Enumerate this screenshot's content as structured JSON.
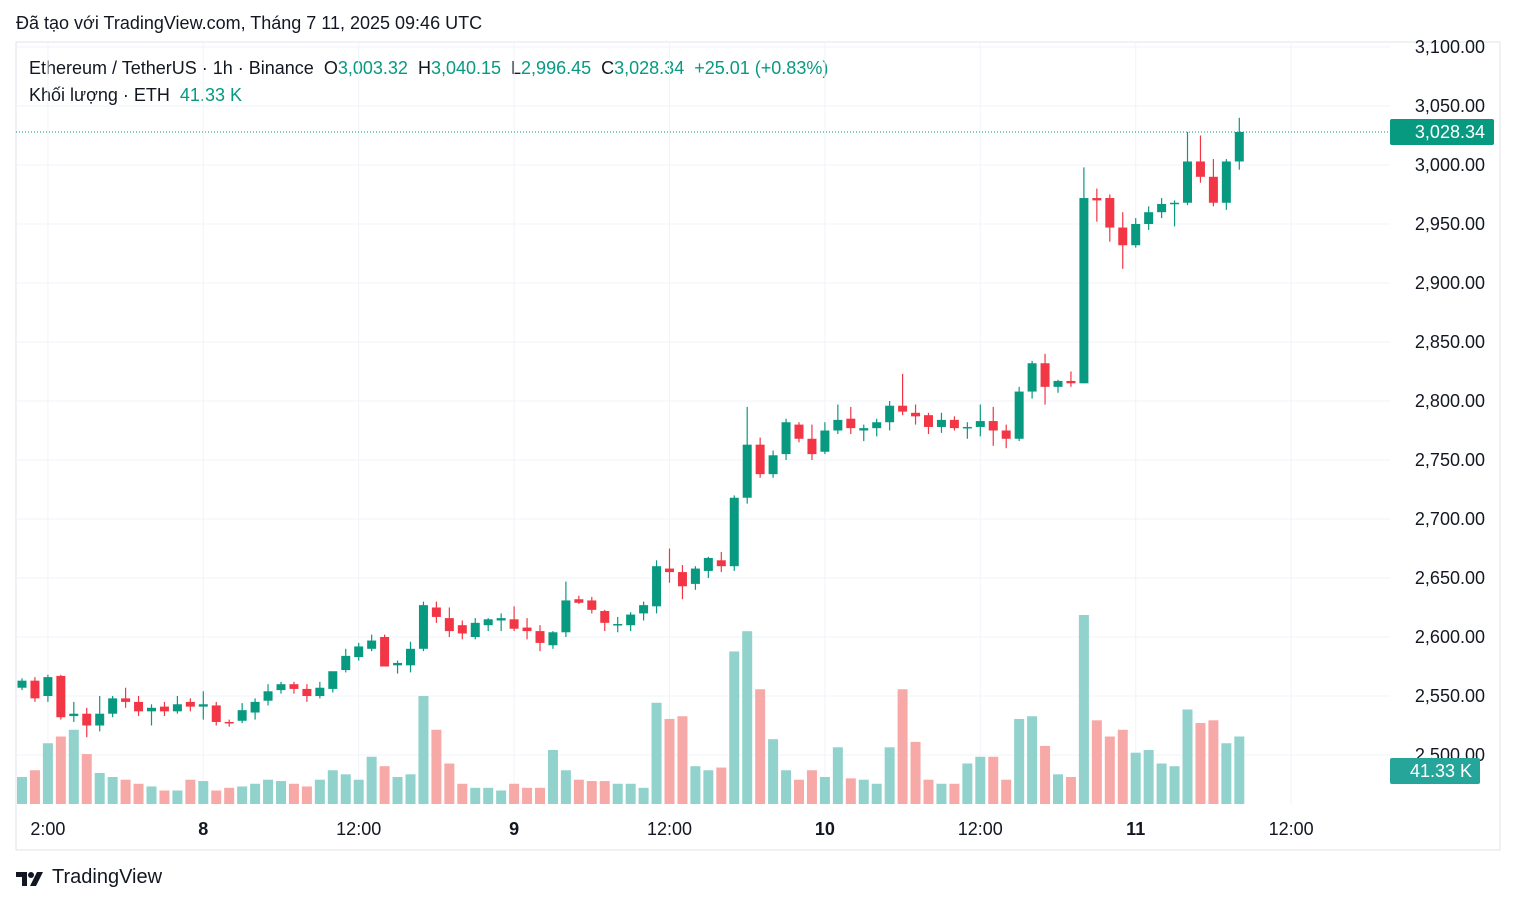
{
  "header": {
    "topline": "Đã tạo với TradingView.com, Tháng 7 11, 2025 09:46 UTC",
    "symbol": "Ethereum / TetherUS · 1h · Binance",
    "o_label": "O",
    "o_value": "3,003.32",
    "h_label": "H",
    "h_value": "3,040.15",
    "l_label": "L",
    "l_value": "2,996.45",
    "c_label": "C",
    "c_value": "3,028.34",
    "change": "+25.01 (+0.83%)",
    "volume_label": "Khối lượng · ETH",
    "volume_value": "41.33 K"
  },
  "footer": {
    "brand": "TradingView"
  },
  "colors": {
    "up": "#089981",
    "down": "#f23645",
    "vol_up": "#92d2cc",
    "vol_down": "#f7a9a7",
    "grid": "#f0f3fa"
  },
  "chart_data": {
    "type": "candlestick",
    "title": "Ethereum / TetherUS · 1h · Binance",
    "last_price_label": "3,028.34",
    "last_volume_label": "41.33 K",
    "ylim": [
      2460,
      3110
    ],
    "y_ticks": [
      "3,100.00",
      "3,050.00",
      "3,000.00",
      "2,950.00",
      "2,900.00",
      "2,850.00",
      "2,800.00",
      "2,750.00",
      "2,700.00",
      "2,650.00",
      "2,600.00",
      "2,550.00",
      "2,500.00"
    ],
    "y_tick_values": [
      3100,
      3050,
      3000,
      2950,
      2900,
      2850,
      2800,
      2750,
      2700,
      2650,
      2600,
      2550,
      2500
    ],
    "x_ticks": [
      {
        "label": "2:00",
        "bold": false,
        "index": 2
      },
      {
        "label": "8",
        "bold": true,
        "index": 14
      },
      {
        "label": "12:00",
        "bold": false,
        "index": 26
      },
      {
        "label": "9",
        "bold": true,
        "index": 38
      },
      {
        "label": "12:00",
        "bold": false,
        "index": 50
      },
      {
        "label": "10",
        "bold": true,
        "index": 62
      },
      {
        "label": "12:00",
        "bold": false,
        "index": 74
      },
      {
        "label": "11",
        "bold": true,
        "index": 86
      },
      {
        "label": "12:00",
        "bold": false,
        "index": 98
      }
    ],
    "candles": [
      [
        2557,
        2565,
        2555,
        2563,
        20
      ],
      [
        2563,
        2566,
        2545,
        2548,
        25
      ],
      [
        2550,
        2568,
        2545,
        2566,
        45
      ],
      [
        2567,
        2568,
        2530,
        2532,
        50
      ],
      [
        2533,
        2545,
        2528,
        2535,
        55
      ],
      [
        2535,
        2540,
        2515,
        2525,
        37
      ],
      [
        2525,
        2550,
        2520,
        2535,
        23
      ],
      [
        2535,
        2550,
        2532,
        2548,
        20
      ],
      [
        2548,
        2557,
        2540,
        2545,
        18
      ],
      [
        2545,
        2550,
        2533,
        2537,
        15
      ],
      [
        2537,
        2543,
        2525,
        2540,
        13
      ],
      [
        2541,
        2545,
        2533,
        2537,
        10
      ],
      [
        2537,
        2550,
        2535,
        2543,
        10
      ],
      [
        2545,
        2548,
        2537,
        2541,
        18
      ],
      [
        2541,
        2554,
        2530,
        2543,
        17
      ],
      [
        2542,
        2545,
        2525,
        2528,
        10
      ],
      [
        2528,
        2530,
        2524,
        2527,
        12
      ],
      [
        2529,
        2544,
        2527,
        2538,
        13
      ],
      [
        2536,
        2548,
        2530,
        2545,
        15
      ],
      [
        2546,
        2560,
        2542,
        2554,
        18
      ],
      [
        2555,
        2562,
        2552,
        2560,
        17
      ],
      [
        2560,
        2562,
        2552,
        2556,
        15
      ],
      [
        2556,
        2560,
        2545,
        2550,
        13
      ],
      [
        2550,
        2562,
        2548,
        2557,
        18
      ],
      [
        2556,
        2570,
        2553,
        2571,
        25
      ],
      [
        2572,
        2590,
        2570,
        2584,
        22
      ],
      [
        2583,
        2595,
        2580,
        2592,
        18
      ],
      [
        2590,
        2602,
        2588,
        2597,
        35
      ],
      [
        2600,
        2602,
        2575,
        2575,
        28
      ],
      [
        2576,
        2580,
        2569,
        2578,
        20
      ],
      [
        2576,
        2596,
        2570,
        2590,
        22
      ],
      [
        2590,
        2630,
        2588,
        2627,
        80
      ],
      [
        2625,
        2630,
        2612,
        2617,
        55
      ],
      [
        2616,
        2625,
        2600,
        2605,
        30
      ],
      [
        2610,
        2614,
        2598,
        2603,
        15
      ],
      [
        2600,
        2616,
        2598,
        2612,
        12
      ],
      [
        2610,
        2616,
        2605,
        2615,
        12
      ],
      [
        2614,
        2620,
        2605,
        2616,
        10
      ],
      [
        2615,
        2626,
        2605,
        2607,
        15
      ],
      [
        2608,
        2616,
        2598,
        2605,
        12
      ],
      [
        2605,
        2610,
        2588,
        2595,
        12
      ],
      [
        2593,
        2605,
        2590,
        2604,
        40
      ],
      [
        2604,
        2647,
        2600,
        2631,
        25
      ],
      [
        2632,
        2635,
        2628,
        2629,
        18
      ],
      [
        2631,
        2634,
        2620,
        2623,
        17
      ],
      [
        2622,
        2623,
        2605,
        2612,
        17
      ],
      [
        2610,
        2617,
        2604,
        2611,
        15
      ],
      [
        2610,
        2621,
        2605,
        2619,
        15
      ],
      [
        2620,
        2630,
        2614,
        2627,
        12
      ],
      [
        2626,
        2665,
        2620,
        2660,
        75
      ],
      [
        2658,
        2675,
        2646,
        2655,
        63
      ],
      [
        2655,
        2661,
        2632,
        2643,
        65
      ],
      [
        2645,
        2660,
        2640,
        2658,
        28
      ],
      [
        2656,
        2668,
        2650,
        2667,
        25
      ],
      [
        2665,
        2672,
        2655,
        2660,
        27
      ],
      [
        2660,
        2720,
        2656,
        2718,
        113
      ],
      [
        2718,
        2795,
        2713,
        2763,
        128
      ],
      [
        2763,
        2769,
        2735,
        2738,
        85
      ],
      [
        2738,
        2758,
        2735,
        2754,
        48
      ],
      [
        2755,
        2785,
        2750,
        2782,
        25
      ],
      [
        2780,
        2782,
        2765,
        2768,
        18
      ],
      [
        2768,
        2780,
        2750,
        2755,
        25
      ],
      [
        2757,
        2782,
        2755,
        2775,
        20
      ],
      [
        2775,
        2797,
        2772,
        2784,
        42
      ],
      [
        2785,
        2795,
        2772,
        2777,
        19
      ],
      [
        2775,
        2780,
        2766,
        2777,
        18
      ],
      [
        2777,
        2785,
        2770,
        2782,
        15
      ],
      [
        2782,
        2800,
        2775,
        2796,
        42
      ],
      [
        2796,
        2823,
        2788,
        2791,
        85
      ],
      [
        2790,
        2797,
        2780,
        2787,
        46
      ],
      [
        2788,
        2790,
        2772,
        2778,
        18
      ],
      [
        2778,
        2790,
        2773,
        2784,
        15
      ],
      [
        2784,
        2787,
        2775,
        2777,
        15
      ],
      [
        2777,
        2782,
        2768,
        2778,
        30
      ],
      [
        2778,
        2797,
        2770,
        2783,
        35
      ],
      [
        2783,
        2795,
        2762,
        2775,
        35
      ],
      [
        2775,
        2780,
        2760,
        2768,
        18
      ],
      [
        2768,
        2812,
        2766,
        2808,
        63
      ],
      [
        2808,
        2834,
        2802,
        2832,
        65
      ],
      [
        2832,
        2840,
        2797,
        2812,
        43
      ],
      [
        2812,
        2818,
        2807,
        2817,
        22
      ],
      [
        2817,
        2825,
        2812,
        2815,
        20
      ],
      [
        2815,
        2998,
        2815,
        2972,
        140
      ],
      [
        2972,
        2980,
        2952,
        2970,
        62
      ],
      [
        2972,
        2975,
        2935,
        2947,
        50
      ],
      [
        2947,
        2960,
        2912,
        2932,
        55
      ],
      [
        2932,
        2955,
        2930,
        2950,
        38
      ],
      [
        2950,
        2965,
        2945,
        2960,
        40
      ],
      [
        2960,
        2972,
        2955,
        2967,
        30
      ],
      [
        2968,
        2970,
        2948,
        2968,
        28
      ],
      [
        2968,
        3028,
        2966,
        3003,
        70
      ],
      [
        3003,
        3025,
        2985,
        2990,
        60
      ],
      [
        2990,
        3005,
        2965,
        2968,
        62
      ],
      [
        2968,
        3005,
        2962,
        3003,
        45
      ],
      [
        3003,
        3040,
        2996,
        3028,
        50
      ]
    ]
  }
}
